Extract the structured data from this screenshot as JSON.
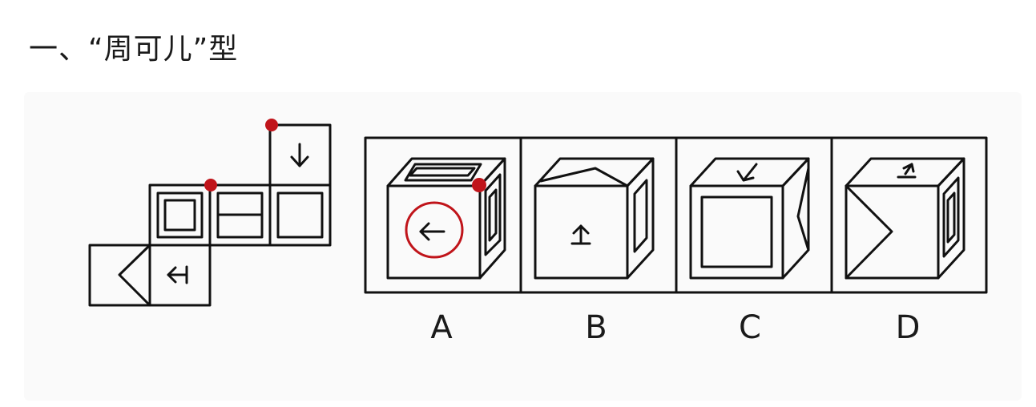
{
  "title": "一、“周可儿”型",
  "options": [
    {
      "label": "A",
      "marked_answer": true
    },
    {
      "label": "B"
    },
    {
      "label": "C"
    },
    {
      "label": "D"
    }
  ],
  "colors": {
    "line": "#111111",
    "annotation": "#c0141a",
    "panel": "#fafafa"
  },
  "icons": [
    "arrow-left-icon",
    "arrow-up-icon",
    "arrow-down-icon",
    "arrow-left-bar-icon",
    "annotation-circle-icon",
    "annotation-dot-icon"
  ]
}
